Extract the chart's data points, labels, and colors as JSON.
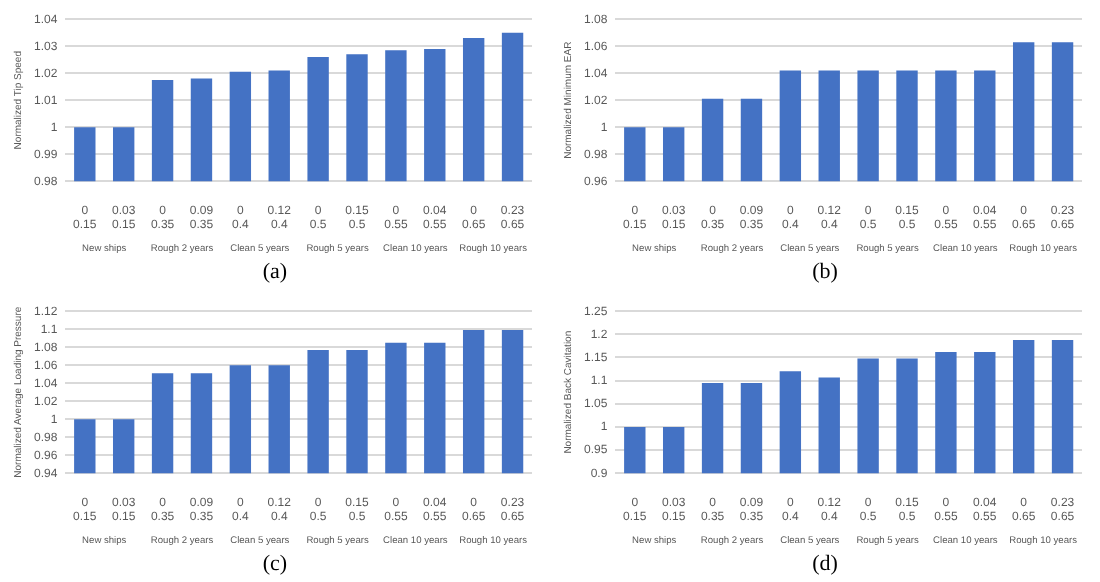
{
  "chart_data": [
    {
      "type": "bar",
      "title": "(a)",
      "ylabel": "Normalized Tip Speed",
      "categories": [
        "0\n0.15",
        "0.03\n0.15",
        "0\n0.35",
        "0.09\n0.35",
        "0\n0.4",
        "0.12\n0.4",
        "0\n0.5",
        "0.15\n0.5",
        "0\n0.55",
        "0.04\n0.55",
        "0\n0.65",
        "0.23\n0.65"
      ],
      "values": [
        1,
        1,
        1.0175,
        1.018,
        1.0205,
        1.021,
        1.026,
        1.027,
        1.0285,
        1.029,
        1.033,
        1.035
      ],
      "color": "#4472c4",
      "ylim": [
        0.98,
        1.04
      ],
      "yticks": [
        0.98,
        0.99,
        1,
        1.01,
        1.02,
        1.03,
        1.04
      ],
      "grid": "y",
      "annotations": [
        "New ships",
        "Rough 2 years",
        "Clean 5 years",
        "Rough 5 years",
        "Clean 10 years",
        "Rough 10 years"
      ]
    },
    {
      "type": "bar",
      "title": "(b)",
      "ylabel": "Normalized Minimum EAR",
      "categories": [
        "0\n0.15",
        "0.03\n0.15",
        "0\n0.35",
        "0.09\n0.35",
        "0\n0.4",
        "0.12\n0.4",
        "0\n0.5",
        "0.15\n0.5",
        "0\n0.55",
        "0.04\n0.55",
        "0\n0.65",
        "0.23\n0.65"
      ],
      "values": [
        1,
        1,
        1.021,
        1.021,
        1.042,
        1.042,
        1.042,
        1.042,
        1.042,
        1.042,
        1.063,
        1.063
      ],
      "color": "#4472c4",
      "ylim": [
        0.96,
        1.08
      ],
      "yticks": [
        0.96,
        0.98,
        1,
        1.02,
        1.04,
        1.06,
        1.08
      ],
      "grid": "y",
      "annotations": [
        "New ships",
        "Rough 2 years",
        "Clean 5 years",
        "Rough 5 years",
        "Clean 10 years",
        "Rough 10 years"
      ]
    },
    {
      "type": "bar",
      "title": "(c)",
      "ylabel": "Normalized Average Loading Pressure",
      "categories": [
        "0\n0.15",
        "0.03\n0.15",
        "0\n0.35",
        "0.09\n0.35",
        "0\n0.4",
        "0.12\n0.4",
        "0\n0.5",
        "0.15\n0.5",
        "0\n0.55",
        "0.04\n0.55",
        "0\n0.65",
        "0.23\n0.65"
      ],
      "values": [
        1,
        1,
        1.051,
        1.051,
        1.06,
        1.06,
        1.077,
        1.077,
        1.085,
        1.085,
        1.099,
        1.099
      ],
      "color": "#4472c4",
      "ylim": [
        0.94,
        1.12
      ],
      "yticks": [
        0.94,
        0.96,
        0.98,
        1,
        1.02,
        1.04,
        1.06,
        1.08,
        1.1,
        1.12
      ],
      "grid": "y",
      "annotations": [
        "New ships",
        "Rough 2 years",
        "Clean 5 years",
        "Rough 5 years",
        "Clean 10 years",
        "Rough 10 years"
      ]
    },
    {
      "type": "bar",
      "title": "(d)",
      "ylabel": "Normalized Back Cavitation",
      "categories": [
        "0\n0.15",
        "0.03\n0.15",
        "0\n0.35",
        "0.09\n0.35",
        "0\n0.4",
        "0.12\n0.4",
        "0\n0.5",
        "0.15\n0.5",
        "0\n0.55",
        "0.04\n0.55",
        "0\n0.65",
        "0.23\n0.65"
      ],
      "values": [
        1,
        1,
        1.095,
        1.095,
        1.12,
        1.107,
        1.148,
        1.148,
        1.162,
        1.162,
        1.188,
        1.188
      ],
      "color": "#4472c4",
      "ylim": [
        0.9,
        1.25
      ],
      "yticks": [
        0.9,
        0.95,
        1,
        1.05,
        1.1,
        1.15,
        1.2,
        1.25
      ],
      "grid": "y",
      "annotations": [
        "New ships",
        "Rough 2 years",
        "Clean 5 years",
        "Rough 5 years",
        "Clean 10 years",
        "Rough 10 years"
      ]
    }
  ]
}
